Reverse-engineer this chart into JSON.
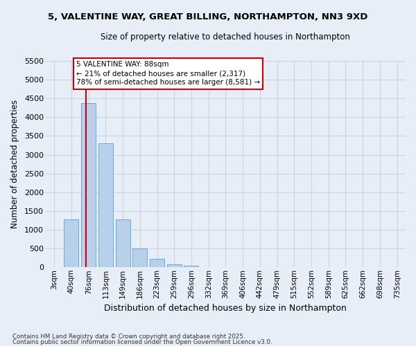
{
  "title_line1": "5, VALENTINE WAY, GREAT BILLING, NORTHAMPTON, NN3 9XD",
  "title_line2": "Size of property relative to detached houses in Northampton",
  "xlabel": "Distribution of detached houses by size in Northampton",
  "ylabel": "Number of detached properties",
  "footer_line1": "Contains HM Land Registry data © Crown copyright and database right 2025.",
  "footer_line2": "Contains public sector information licensed under the Open Government Licence v3.0.",
  "categories": [
    "3sqm",
    "40sqm",
    "76sqm",
    "113sqm",
    "149sqm",
    "186sqm",
    "223sqm",
    "259sqm",
    "296sqm",
    "332sqm",
    "369sqm",
    "406sqm",
    "442sqm",
    "479sqm",
    "515sqm",
    "552sqm",
    "589sqm",
    "625sqm",
    "662sqm",
    "698sqm",
    "735sqm"
  ],
  "bar_values": [
    0,
    1270,
    4380,
    3300,
    1280,
    500,
    220,
    80,
    50,
    0,
    0,
    0,
    0,
    0,
    0,
    0,
    0,
    0,
    0,
    0,
    0
  ],
  "bar_color": "#b8d0ea",
  "bar_edge_color": "#6aaad4",
  "grid_color": "#c8d4e4",
  "background_color": "#e8eef8",
  "vline_color": "#cc0000",
  "vline_index": 2,
  "annotation_text": "5 VALENTINE WAY: 88sqm\n← 21% of detached houses are smaller (2,317)\n78% of semi-detached houses are larger (8,581) →",
  "annotation_box_edgecolor": "#cc0000",
  "ylim_max": 5500,
  "ytick_step": 500
}
